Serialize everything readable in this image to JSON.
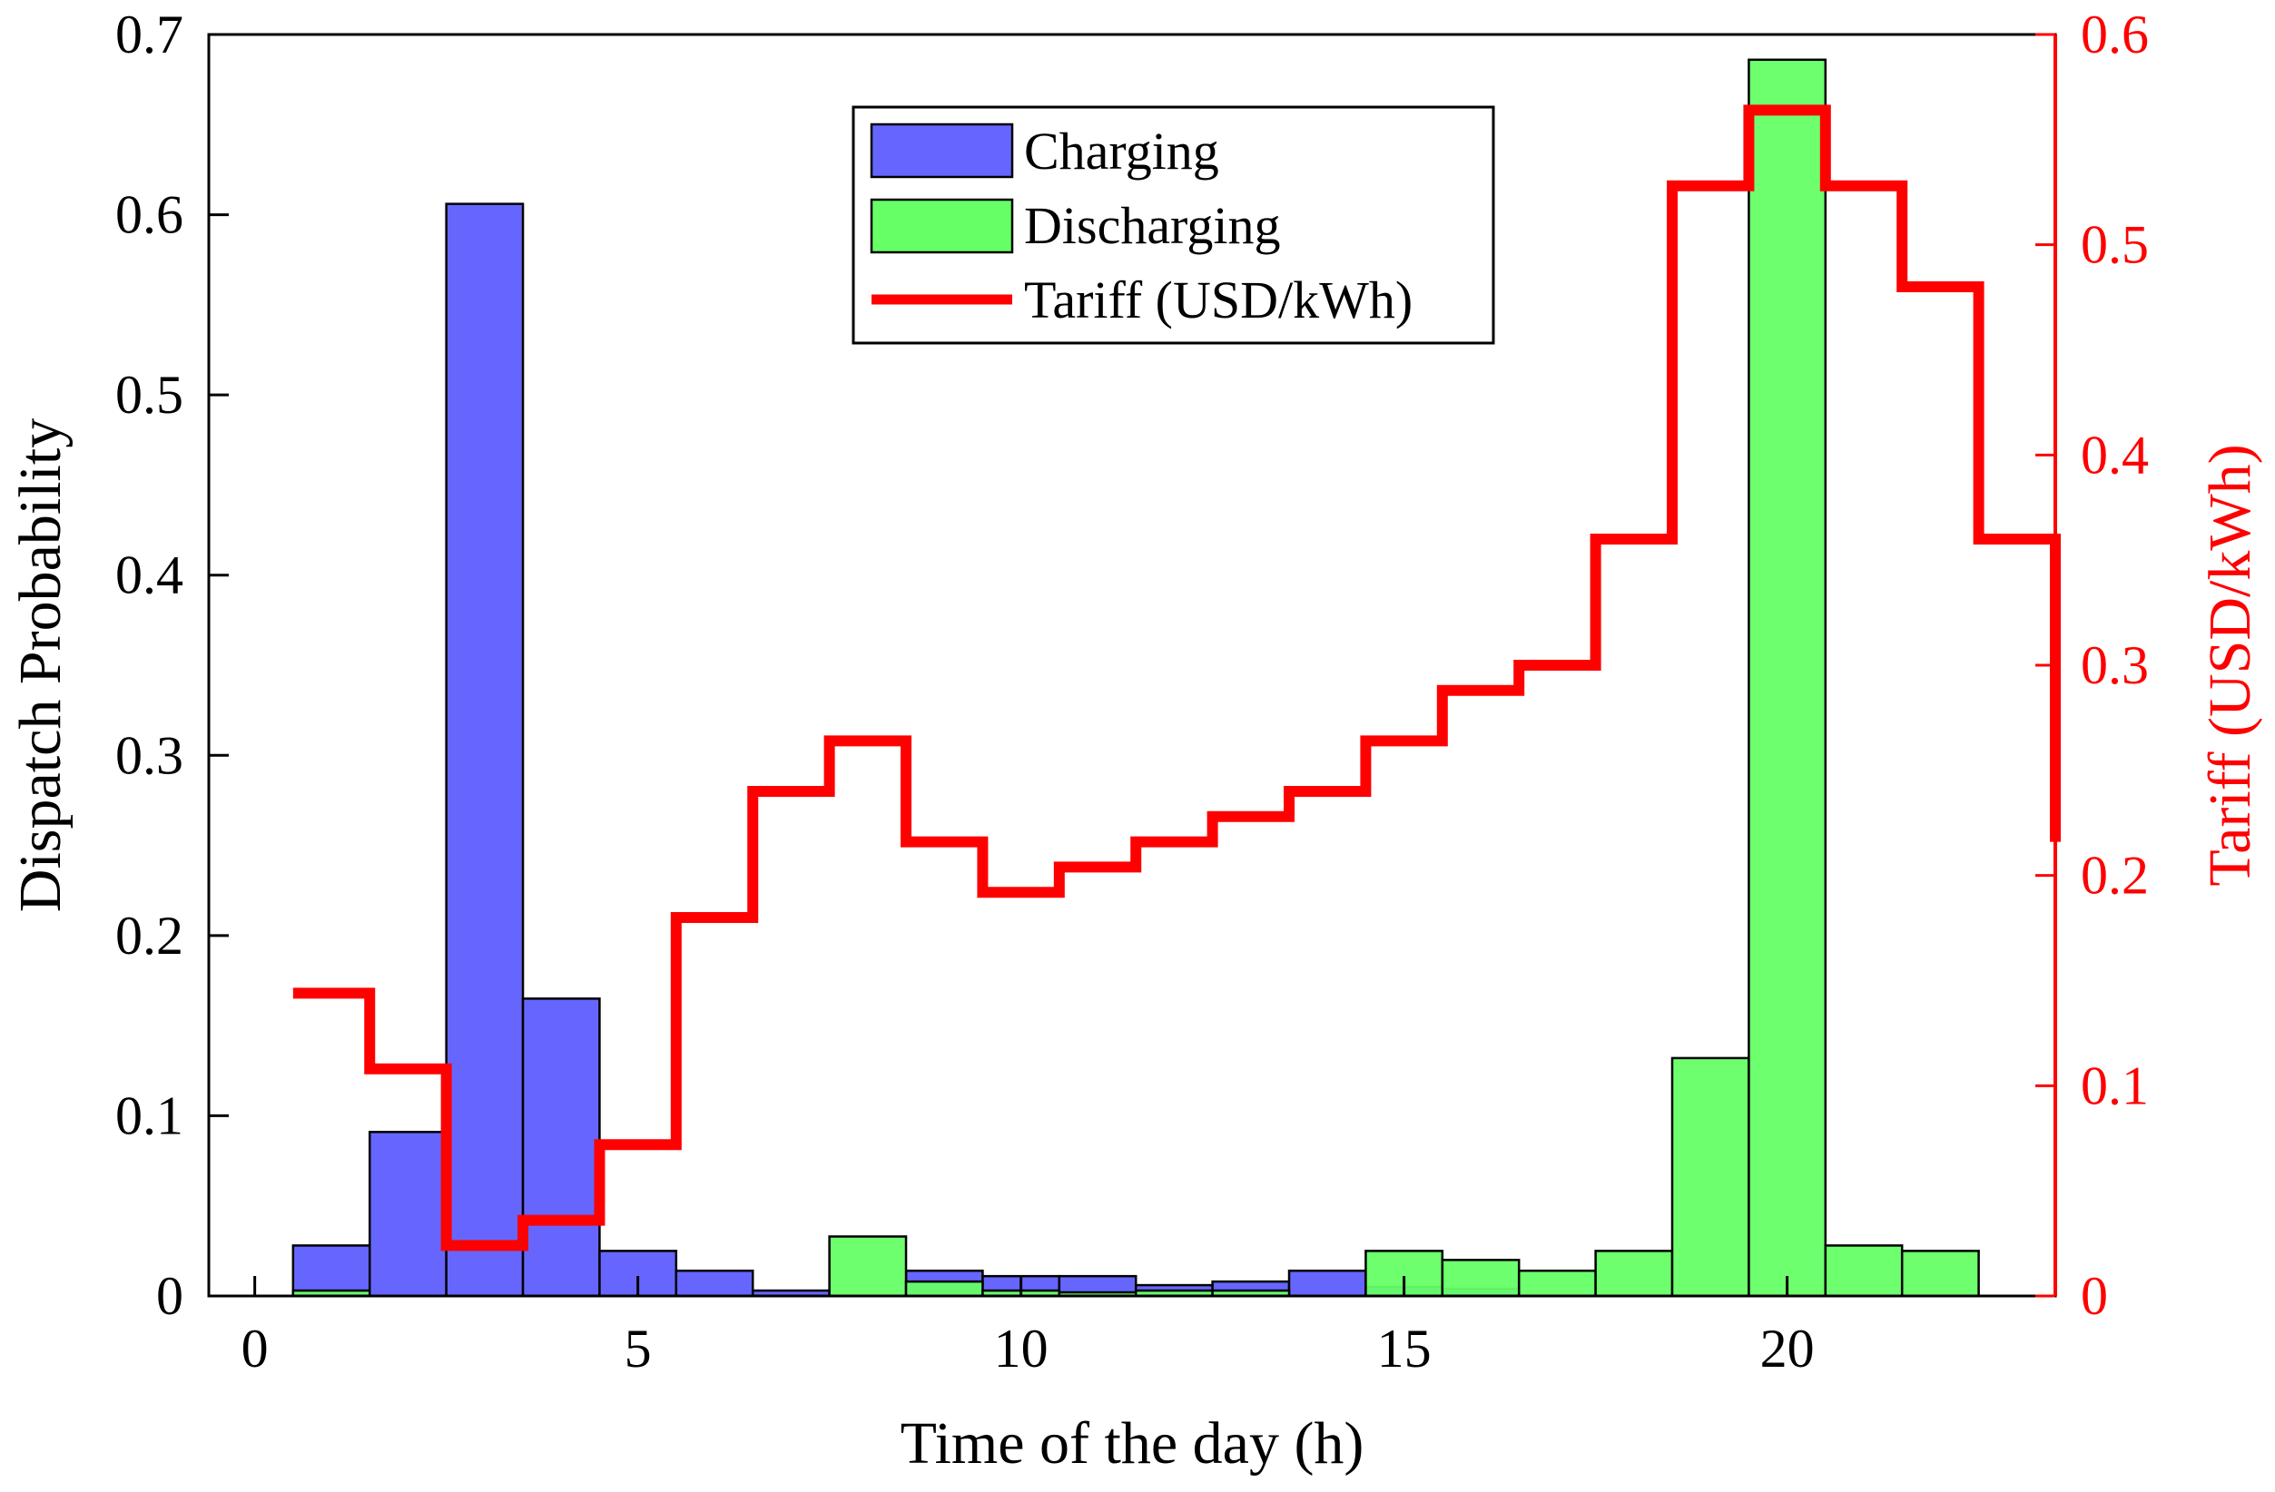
{
  "chart_data": {
    "type": "bar",
    "title": "",
    "xlabel": "Time of the day (h)",
    "ylabel": "Dispatch Probability",
    "y2label": "Tariff (USD/kWh)",
    "xlim": [
      -0.6,
      23.5
    ],
    "ylim": [
      0,
      0.7
    ],
    "y2lim": [
      0,
      0.6
    ],
    "x_ticks": [
      0,
      5,
      10,
      15,
      20
    ],
    "y_ticks": [
      0,
      0.1,
      0.2,
      0.3,
      0.4,
      0.5,
      0.6,
      0.7
    ],
    "y2_ticks": [
      0,
      0.1,
      0.2,
      0.3,
      0.4,
      0.5,
      0.6
    ],
    "x_tick_labels": [
      "0",
      "5",
      "10",
      "15",
      "20"
    ],
    "y_tick_labels": [
      "0",
      "0.1",
      "0.2",
      "0.3",
      "0.4",
      "0.5",
      "0.6",
      "0.7"
    ],
    "y2_tick_labels": [
      "0",
      "0.1",
      "0.2",
      "0.3",
      "0.4",
      "0.5",
      "0.6"
    ],
    "hours": [
      1,
      2,
      3,
      4,
      5,
      6,
      7,
      8,
      9,
      10,
      11,
      12,
      13,
      14,
      15,
      16,
      17,
      18,
      19,
      20,
      21,
      22
    ],
    "series": [
      {
        "name": "Charging",
        "color": "#6666ff",
        "values": [
          0.028,
          0.091,
          0.606,
          0.165,
          0.025,
          0.014,
          0.003,
          0.0,
          0.014,
          0.011,
          0.011,
          0.006,
          0.008,
          0.014,
          0.005,
          0.004,
          0.0,
          0.0,
          0.0,
          0.0,
          0.0,
          0.0
        ]
      },
      {
        "name": "Discharging",
        "color": "#66ff66",
        "values": [
          0.003,
          0.0,
          0.0,
          0.0,
          0.0,
          0.0,
          0.0,
          0.033,
          0.008,
          0.003,
          0.002,
          0.003,
          0.003,
          0.0,
          0.025,
          0.02,
          0.014,
          0.025,
          0.132,
          0.686,
          0.028,
          0.025
        ]
      }
    ],
    "tariff": {
      "name": "Tariff (USD/kWh)",
      "color": "#ff0000",
      "steps": [
        {
          "x0": 0.5,
          "x1": 1.5,
          "v": 0.144
        },
        {
          "x0": 1.5,
          "x1": 2.5,
          "v": 0.108
        },
        {
          "x0": 2.5,
          "x1": 3.5,
          "v": 0.024
        },
        {
          "x0": 3.5,
          "x1": 4.5,
          "v": 0.036
        },
        {
          "x0": 4.5,
          "x1": 5.5,
          "v": 0.072
        },
        {
          "x0": 5.5,
          "x1": 6.5,
          "v": 0.18
        },
        {
          "x0": 6.5,
          "x1": 7.5,
          "v": 0.24
        },
        {
          "x0": 7.5,
          "x1": 8.5,
          "v": 0.264
        },
        {
          "x0": 8.5,
          "x1": 9.5,
          "v": 0.216
        },
        {
          "x0": 9.5,
          "x1": 10.5,
          "v": 0.192
        },
        {
          "x0": 10.5,
          "x1": 11.5,
          "v": 0.204
        },
        {
          "x0": 11.5,
          "x1": 12.5,
          "v": 0.216
        },
        {
          "x0": 12.5,
          "x1": 13.5,
          "v": 0.228
        },
        {
          "x0": 13.5,
          "x1": 14.5,
          "v": 0.24
        },
        {
          "x0": 14.5,
          "x1": 15.5,
          "v": 0.264
        },
        {
          "x0": 15.5,
          "x1": 16.5,
          "v": 0.288
        },
        {
          "x0": 16.5,
          "x1": 17.5,
          "v": 0.3
        },
        {
          "x0": 17.5,
          "x1": 18.5,
          "v": 0.36
        },
        {
          "x0": 18.5,
          "x1": 19.5,
          "v": 0.528
        },
        {
          "x0": 19.5,
          "x1": 20.5,
          "v": 0.564
        },
        {
          "x0": 20.5,
          "x1": 21.5,
          "v": 0.528
        },
        {
          "x0": 21.5,
          "x1": 22.5,
          "v": 0.48
        },
        {
          "x0": 22.5,
          "x1": 23.5,
          "v": 0.36
        },
        {
          "x0": 23.5,
          "x1": 23.5,
          "v": 0.216
        }
      ]
    },
    "legend": {
      "position": "top-center",
      "entries": [
        "Charging",
        "Discharging",
        "Tariff (USD/kWh)"
      ]
    },
    "grid": false
  }
}
